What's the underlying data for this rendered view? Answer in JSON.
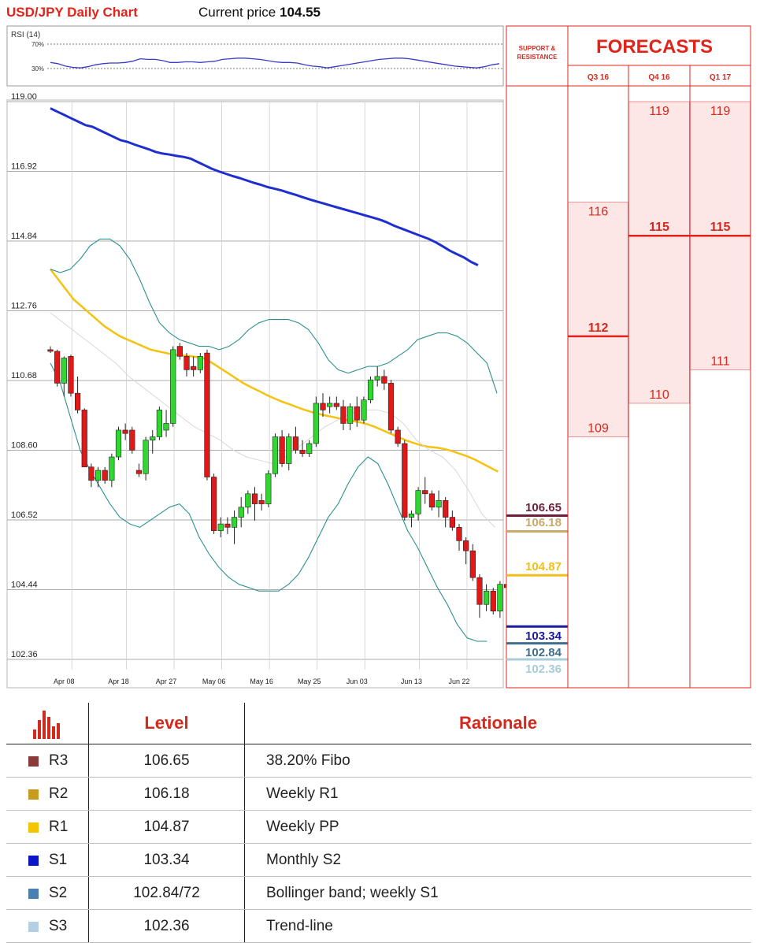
{
  "header": {
    "title": "USD/JPY Daily Chart",
    "current_price_label": "Current price",
    "current_price_value": "104.55"
  },
  "rsi_panel": {
    "label": "RSI (14)",
    "levels": [
      "70%",
      "30%"
    ],
    "values": [
      40,
      38,
      34,
      32,
      31,
      33,
      36,
      38,
      39,
      39,
      40,
      42,
      46,
      45,
      45,
      43,
      40,
      40,
      41,
      41,
      40,
      41,
      42,
      45,
      46,
      47,
      47,
      46,
      45,
      43,
      41,
      40,
      40,
      39,
      36,
      34,
      33,
      31,
      33,
      35,
      37,
      39,
      41,
      43,
      45,
      46,
      47,
      47,
      46,
      44,
      42,
      40,
      38,
      36,
      34,
      33,
      32,
      31,
      33,
      36,
      38
    ]
  },
  "forecast_panel": {
    "support_resistance_label": "SUPPORT & RESISTANCE",
    "title": "FORECASTS",
    "columns": [
      {
        "label": "Q3 16",
        "high": 116,
        "median": 112,
        "low": 109
      },
      {
        "label": "Q4 16",
        "high": 119,
        "median": 115,
        "low": 110
      },
      {
        "label": "Q1 17",
        "high": 119,
        "median": 115,
        "low": 111
      }
    ]
  },
  "levels": [
    {
      "tag": "R3",
      "value": 106.65,
      "label": "106.65",
      "rationale": "38.20% Fibo",
      "color": "#6e1f3a",
      "swatch": "#8b3a3a"
    },
    {
      "tag": "R2",
      "value": 106.18,
      "label": "106.18",
      "rationale": "Weekly R1",
      "color": "#c9a86a",
      "swatch": "#c89b1e"
    },
    {
      "tag": "R1",
      "value": 104.87,
      "label": "104.87",
      "rationale": "Weekly PP",
      "color": "#f2be1a",
      "swatch": "#f5c400"
    },
    {
      "tag": "S1",
      "value": 103.34,
      "label": "103.34",
      "rationale": "Monthly S2",
      "color": "#1a1a9e",
      "swatch": "#0a14c8"
    },
    {
      "tag": "S2",
      "value": 102.84,
      "label": "102.84",
      "table_label": "102.84/72",
      "rationale": "Bollinger band; weekly S1",
      "color": "#3e6e8e",
      "swatch": "#4a7fb0"
    },
    {
      "tag": "S3",
      "value": 102.36,
      "label": "102.36",
      "rationale": "Trend-line",
      "color": "#a8ccd8",
      "swatch": "#b3cfe6"
    }
  ],
  "table": {
    "col_level": "Level",
    "col_rationale": "Rationale"
  },
  "chart_data": {
    "type": "candlestick",
    "ylim": [
      102.36,
      119.0
    ],
    "y_ticks": [
      "119.00",
      "116.92",
      "114.84",
      "112.76",
      "110.68",
      "108.60",
      "106.52",
      "104.44",
      "102.36"
    ],
    "x_ticks": [
      {
        "label": "Apr 08",
        "index": 2
      },
      {
        "label": "Apr 18",
        "index": 10
      },
      {
        "label": "Apr 27",
        "index": 17
      },
      {
        "label": "May 06",
        "index": 24
      },
      {
        "label": "May 16",
        "index": 31
      },
      {
        "label": "May 25",
        "index": 38
      },
      {
        "label": "Jun 03",
        "index": 45
      },
      {
        "label": "Jun 13",
        "index": 53
      },
      {
        "label": "Jun 22",
        "index": 60
      }
    ],
    "candles": [
      [
        111.6,
        111.7,
        111.5,
        111.55
      ],
      [
        111.55,
        111.6,
        110.5,
        110.6
      ],
      [
        110.6,
        111.4,
        110.2,
        111.35
      ],
      [
        111.4,
        111.45,
        110.2,
        110.3
      ],
      [
        110.3,
        110.8,
        109.7,
        109.8
      ],
      [
        109.8,
        109.85,
        108.1,
        108.1
      ],
      [
        108.1,
        108.2,
        107.5,
        107.7
      ],
      [
        107.7,
        108.1,
        107.5,
        108.0
      ],
      [
        108.0,
        108.1,
        107.6,
        107.7
      ],
      [
        107.7,
        108.5,
        107.5,
        108.4
      ],
      [
        108.4,
        109.3,
        108.3,
        109.2
      ],
      [
        109.2,
        109.4,
        108.9,
        109.1
      ],
      [
        109.2,
        109.3,
        108.5,
        108.6
      ],
      [
        108.0,
        108.2,
        107.8,
        107.9
      ],
      [
        107.9,
        109.0,
        107.7,
        108.9
      ],
      [
        108.9,
        109.2,
        108.5,
        109.0
      ],
      [
        109.0,
        109.9,
        108.9,
        109.8
      ],
      [
        109.2,
        109.8,
        109.0,
        109.4
      ],
      [
        109.4,
        111.7,
        109.3,
        111.6
      ],
      [
        111.7,
        111.8,
        111.3,
        111.4
      ],
      [
        111.4,
        111.5,
        110.8,
        111.0
      ],
      [
        111.1,
        111.4,
        110.8,
        111.0
      ],
      [
        111.0,
        111.5,
        110.9,
        111.4
      ],
      [
        111.5,
        111.6,
        107.7,
        107.8
      ],
      [
        107.8,
        107.9,
        106.1,
        106.2
      ],
      [
        106.2,
        106.6,
        106.0,
        106.4
      ],
      [
        106.4,
        106.6,
        106.1,
        106.3
      ],
      [
        106.3,
        106.8,
        105.8,
        106.6
      ],
      [
        106.6,
        107.2,
        106.3,
        106.9
      ],
      [
        106.9,
        107.4,
        106.7,
        107.3
      ],
      [
        107.3,
        107.5,
        106.5,
        107.0
      ],
      [
        107.1,
        107.3,
        106.8,
        107.0
      ],
      [
        107.0,
        108.0,
        106.9,
        107.9
      ],
      [
        107.9,
        109.1,
        107.8,
        109.0
      ],
      [
        109.0,
        109.2,
        108.1,
        108.2
      ],
      [
        108.2,
        109.1,
        108.0,
        109.0
      ],
      [
        109.0,
        109.3,
        108.5,
        108.6
      ],
      [
        108.6,
        108.9,
        108.4,
        108.5
      ],
      [
        108.5,
        108.9,
        108.4,
        108.8
      ],
      [
        108.8,
        110.2,
        108.7,
        110.0
      ],
      [
        110.0,
        110.3,
        109.6,
        109.8
      ],
      [
        109.9,
        110.2,
        109.7,
        110.0
      ],
      [
        110.0,
        110.2,
        109.8,
        109.9
      ],
      [
        109.9,
        110.1,
        109.2,
        109.4
      ],
      [
        109.4,
        110.0,
        109.2,
        109.9
      ],
      [
        109.9,
        110.2,
        109.3,
        109.5
      ],
      [
        109.5,
        110.2,
        109.4,
        110.1
      ],
      [
        110.1,
        110.8,
        110.0,
        110.7
      ],
      [
        110.7,
        111.1,
        110.5,
        110.8
      ],
      [
        110.8,
        111.0,
        110.4,
        110.6
      ],
      [
        110.6,
        110.7,
        109.1,
        109.2
      ],
      [
        109.2,
        109.3,
        108.7,
        108.8
      ],
      [
        108.8,
        108.9,
        106.5,
        106.6
      ],
      [
        106.6,
        106.8,
        106.3,
        106.7
      ],
      [
        106.7,
        107.5,
        106.5,
        107.4
      ],
      [
        107.4,
        107.8,
        107.0,
        107.3
      ],
      [
        107.3,
        107.4,
        106.8,
        106.9
      ],
      [
        106.9,
        107.4,
        106.6,
        107.1
      ],
      [
        107.1,
        107.2,
        106.3,
        106.6
      ],
      [
        106.6,
        106.8,
        106.2,
        106.3
      ],
      [
        106.3,
        106.4,
        105.6,
        105.9
      ],
      [
        105.9,
        106.0,
        105.2,
        105.6
      ],
      [
        105.6,
        105.8,
        104.7,
        104.8
      ],
      [
        104.8,
        104.9,
        103.6,
        104.0
      ],
      [
        104.0,
        104.6,
        103.8,
        104.4
      ],
      [
        104.4,
        104.5,
        103.7,
        103.8
      ],
      [
        103.8,
        104.7,
        103.6,
        104.6
      ],
      [
        104.6,
        105.0,
        104.2,
        104.5
      ]
    ],
    "series": [
      {
        "kind": "sma_long",
        "color": "#1f2fcf",
        "values": [
          118.8,
          118.7,
          118.6,
          118.5,
          118.4,
          118.3,
          118.25,
          118.15,
          118.05,
          117.95,
          117.85,
          117.8,
          117.72,
          117.65,
          117.58,
          117.5,
          117.45,
          117.42,
          117.38,
          117.35,
          117.3,
          117.2,
          117.1,
          117.0,
          116.92,
          116.85,
          116.78,
          116.72,
          116.65,
          116.58,
          116.52,
          116.45,
          116.4,
          116.35,
          116.28,
          116.22,
          116.15,
          116.08,
          116.02,
          115.96,
          115.9,
          115.84,
          115.78,
          115.72,
          115.66,
          115.6,
          115.54,
          115.48,
          115.4,
          115.3,
          115.22,
          115.14,
          115.06,
          114.98,
          114.9,
          114.8,
          114.68,
          114.55,
          114.45,
          114.35,
          114.22,
          114.12
        ]
      },
      {
        "kind": "sma_mid",
        "color": "#f5c20e",
        "values": [
          114.0,
          113.7,
          113.4,
          113.1,
          112.9,
          112.7,
          112.5,
          112.3,
          112.15,
          112.0,
          111.9,
          111.8,
          111.7,
          111.6,
          111.55,
          111.5,
          111.45,
          111.43,
          111.41,
          111.38,
          111.33,
          111.2,
          111.05,
          110.9,
          110.75,
          110.6,
          110.48,
          110.37,
          110.25,
          110.15,
          110.05,
          109.97,
          109.88,
          109.8,
          109.73,
          109.67,
          109.62,
          109.57,
          109.52,
          109.48,
          109.44,
          109.38,
          109.3,
          109.2,
          109.1,
          109.0,
          108.9,
          108.82,
          108.75,
          108.7,
          108.68,
          108.64,
          108.58,
          108.5,
          108.42,
          108.32,
          108.2,
          108.08,
          107.96
        ]
      },
      {
        "kind": "bb_upper",
        "color": "#2d8f8f",
        "values": [
          114.0,
          113.9,
          114.0,
          114.3,
          114.7,
          114.9,
          114.9,
          114.7,
          114.3,
          113.7,
          113.0,
          112.4,
          112.1,
          111.9,
          111.8,
          111.7,
          111.7,
          111.6,
          111.7,
          111.9,
          112.2,
          112.4,
          112.5,
          112.5,
          112.5,
          112.4,
          112.2,
          111.8,
          111.3,
          111.0,
          110.9,
          111.0,
          111.1,
          111.1,
          111.2,
          111.4,
          111.6,
          111.9,
          112.0,
          112.1,
          112.1,
          112.0,
          111.8,
          111.5,
          111.2,
          110.3
        ]
      },
      {
        "kind": "bb_lower",
        "color": "#2d8f8f",
        "values": [
          111.2,
          110.6,
          109.6,
          108.6,
          108.0,
          107.5,
          107.0,
          106.6,
          106.4,
          106.3,
          106.5,
          106.7,
          106.9,
          107.0,
          106.7,
          106.0,
          105.5,
          105.1,
          104.8,
          104.6,
          104.5,
          104.4,
          104.4,
          104.4,
          104.6,
          104.9,
          105.4,
          106.0,
          106.6,
          107.0,
          107.6,
          108.1,
          108.4,
          108.2,
          107.6,
          106.9,
          106.2,
          105.7,
          105.1,
          104.5,
          104.0,
          103.4,
          103.0,
          102.9,
          102.9
        ]
      },
      {
        "kind": "ma_faint",
        "color": "#d8d8d8",
        "values": [
          112.7,
          112.4,
          112.1,
          111.8,
          111.5,
          111.2,
          110.8,
          110.5,
          110.2,
          109.9,
          109.6,
          109.3,
          109.1,
          108.9,
          108.6,
          108.4,
          108.3,
          108.2,
          108.4,
          108.7,
          109.0,
          109.3,
          109.5,
          109.7,
          109.8,
          109.8,
          109.7,
          109.4,
          108.9,
          108.6,
          108.4,
          108.0,
          107.4,
          106.7,
          106.3
        ]
      }
    ]
  }
}
